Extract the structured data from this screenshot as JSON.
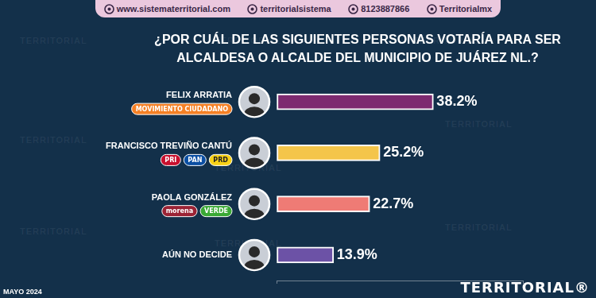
{
  "header": [
    "www.sistematerritorial.com",
    "territorialsistema",
    "8123887866",
    "Territorialmx"
  ],
  "date": "MAYO 2024",
  "brand": "TERRITORIAL®",
  "watermark": "TERRITORIAL",
  "chart_data": {
    "type": "bar",
    "orientation": "horizontal",
    "title": [
      "¿POR CUÁL DE LAS SIGUIENTES PERSONAS VOTARÍA PARA SER",
      "ALCALDESA O ALCALDE DEL MUNICIPIO DE JUÁREZ NL.?"
    ],
    "categories": [
      "FELIX ARRATIA",
      "FRANCISCO TREVIÑO CANTÚ",
      "PAOLA GONZÁLEZ",
      "AÚN NO DECIDE"
    ],
    "values": [
      38.2,
      25.2,
      22.7,
      13.9
    ],
    "value_labels": [
      "38.2%",
      "25.2%",
      "22.7%",
      "13.9%"
    ],
    "colors": [
      "#7d2a70",
      "#f4c54a",
      "#ef7b75",
      "#6c52a6"
    ],
    "parties": [
      [
        {
          "name": "MOVIMIENTO CIUDADANO",
          "color": "#f58025"
        }
      ],
      [
        {
          "name": "PRI",
          "color": "#c8102e"
        },
        {
          "name": "PAN",
          "color": "#0a4ea2"
        },
        {
          "name": "PRD",
          "color": "#f7d117"
        }
      ],
      [
        {
          "name": "morena",
          "color": "#9b2335"
        },
        {
          "name": "VERDE",
          "color": "#3aa935"
        }
      ],
      []
    ],
    "xlim": [
      0,
      60
    ],
    "xticks": [
      0,
      60
    ],
    "grid": false,
    "data_labels": true,
    "tick_labels": "y"
  }
}
